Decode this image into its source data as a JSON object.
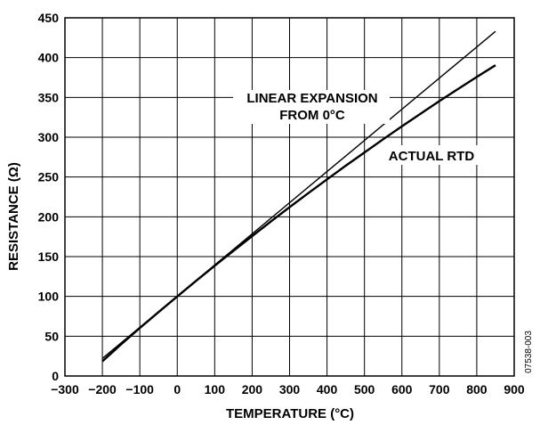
{
  "chart_data": {
    "type": "line",
    "title": "",
    "xlabel": "TEMPERATURE (°C)",
    "ylabel": "RESISTANCE (Ω)",
    "xlim": [
      -300,
      900
    ],
    "ylim": [
      0,
      450
    ],
    "x_ticks": [
      -300,
      -200,
      -100,
      0,
      100,
      200,
      300,
      400,
      500,
      600,
      700,
      800,
      900
    ],
    "y_ticks": [
      0,
      50,
      100,
      150,
      200,
      250,
      300,
      350,
      400,
      450
    ],
    "x_tick_labels": [
      "−300",
      "−200",
      "−100",
      "0",
      "100",
      "200",
      "300",
      "400",
      "500",
      "600",
      "700",
      "800",
      "900"
    ],
    "y_tick_labels": [
      "0",
      "50",
      "100",
      "150",
      "200",
      "250",
      "300",
      "350",
      "400",
      "450"
    ],
    "grid": true,
    "series": [
      {
        "x": [
          -200,
          850
        ],
        "y": [
          22,
          433
        ]
      },
      {
        "x": [
          -200,
          -150,
          -100,
          -50,
          0,
          50,
          100,
          150,
          200,
          250,
          300,
          350,
          400,
          450,
          500,
          550,
          600,
          650,
          700,
          750,
          800,
          850
        ],
        "y": [
          18.5,
          39.7,
          60.3,
          80.3,
          100.0,
          119.4,
          138.5,
          157.3,
          175.8,
          194.1,
          212.1,
          229.7,
          247.1,
          264.2,
          280.9,
          297.4,
          313.7,
          329.6,
          345.3,
          360.6,
          375.7,
          390.5
        ]
      }
    ],
    "annotations": [
      {
        "text_lines": [
          "LINEAR EXPANSION",
          "FROM 0°C"
        ]
      },
      {
        "text_lines": [
          "ACTUAL RTD"
        ]
      }
    ],
    "figure_id": "07538-003"
  }
}
